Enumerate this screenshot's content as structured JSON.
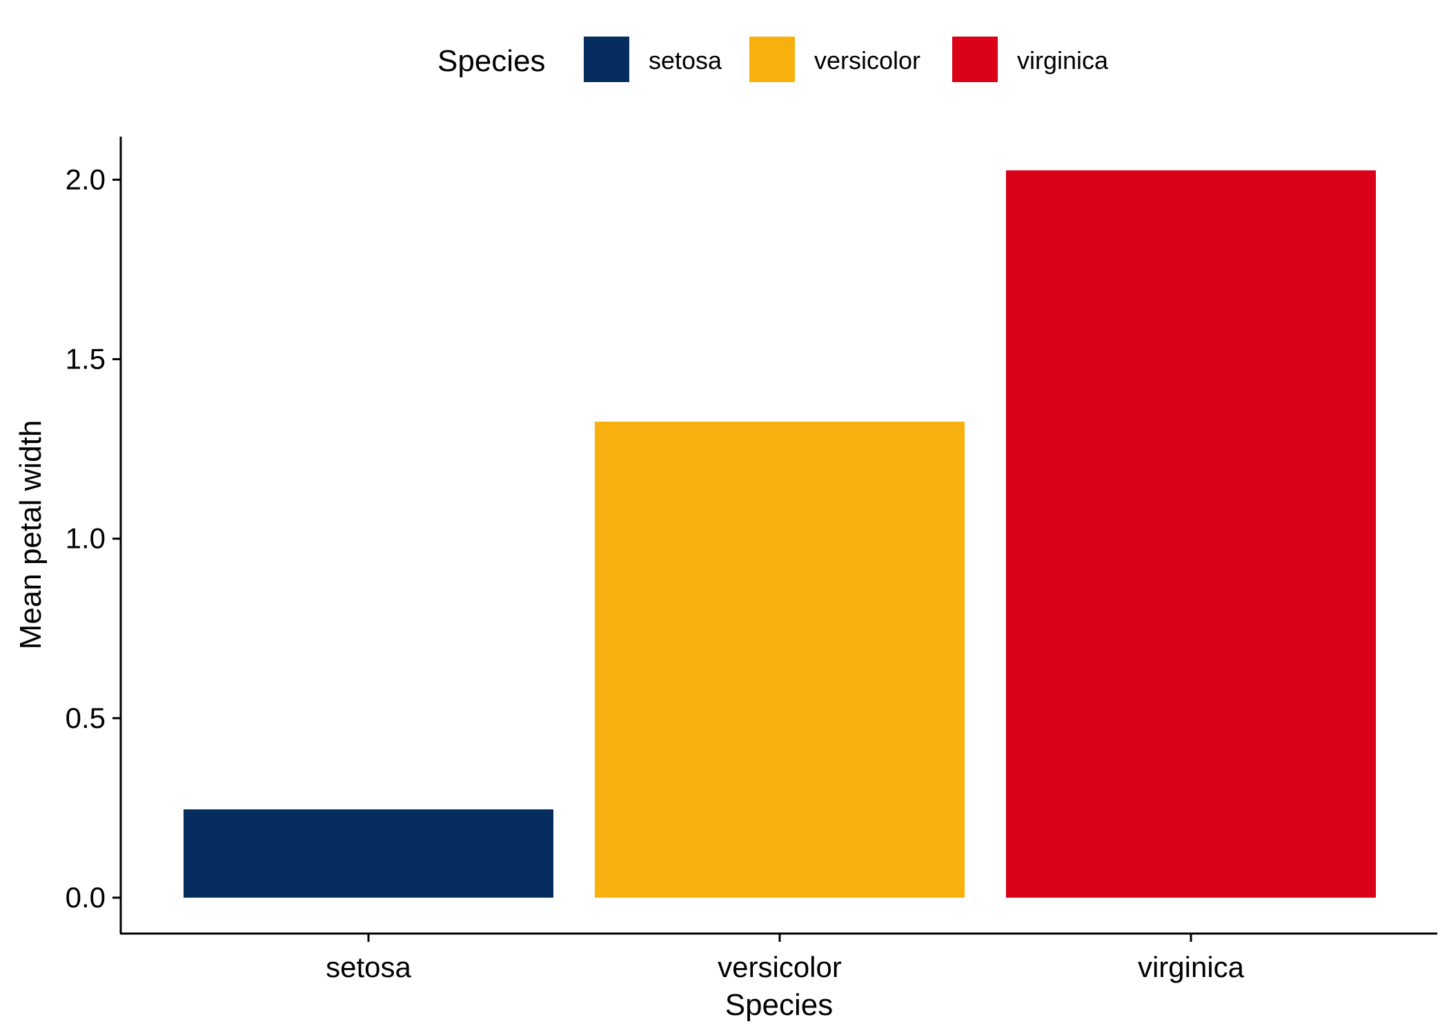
{
  "chart_data": {
    "type": "bar",
    "categories": [
      "setosa",
      "versicolor",
      "virginica"
    ],
    "values": [
      0.246,
      1.326,
      2.026
    ],
    "colors": [
      "#052E5F",
      "#F7B00E",
      "#D90017"
    ],
    "xlabel": "Species",
    "ylabel": "Mean petal width",
    "ylim": [
      -0.1,
      2.12
    ],
    "yticks": [
      "0.0",
      "0.5",
      "1.0",
      "1.5",
      "2.0"
    ],
    "grid": false,
    "legend": {
      "title": "Species",
      "position": "top",
      "entries": [
        "setosa",
        "versicolor",
        "virginica"
      ]
    }
  }
}
